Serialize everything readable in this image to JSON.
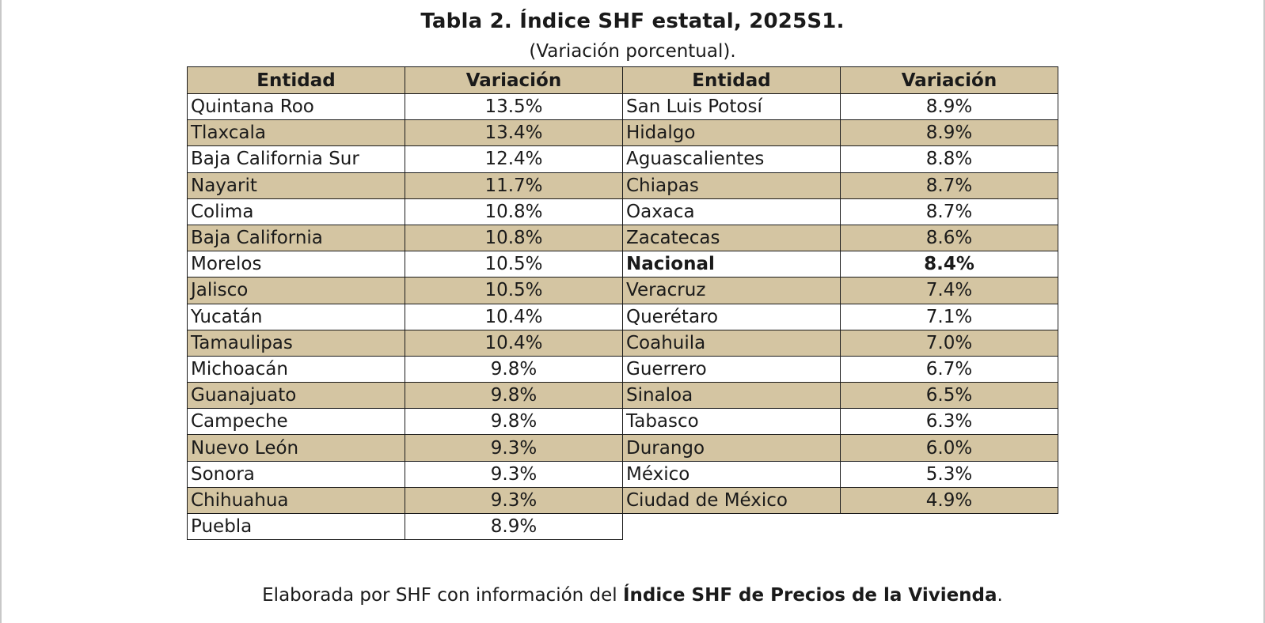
{
  "title": "Tabla 2. Índice SHF estatal, 2025S1.",
  "subtitle": "(Variación porcentual).",
  "headers": [
    "Entidad",
    "Variación",
    "Entidad",
    "Variación"
  ],
  "rows": [
    {
      "e1": "Quintana Roo",
      "v1": "13.5%",
      "e2": "San Luis Potosí",
      "v2": "8.9%"
    },
    {
      "e1": "Tlaxcala",
      "v1": "13.4%",
      "e2": "Hidalgo",
      "v2": "8.9%"
    },
    {
      "e1": "Baja California Sur",
      "v1": "12.4%",
      "e2": "Aguascalientes",
      "v2": "8.8%"
    },
    {
      "e1": "Nayarit",
      "v1": "11.7%",
      "e2": "Chiapas",
      "v2": "8.7%"
    },
    {
      "e1": "Colima",
      "v1": "10.8%",
      "e2": "Oaxaca",
      "v2": "8.7%"
    },
    {
      "e1": "Baja California",
      "v1": "10.8%",
      "e2": "Zacatecas",
      "v2": "8.6%"
    },
    {
      "e1": "Morelos",
      "v1": "10.5%",
      "e2": "Nacional",
      "v2": "8.4%"
    },
    {
      "e1": "Jalisco",
      "v1": "10.5%",
      "e2": "Veracruz",
      "v2": "7.4%"
    },
    {
      "e1": "Yucatán",
      "v1": "10.4%",
      "e2": "Querétaro",
      "v2": "7.1%"
    },
    {
      "e1": "Tamaulipas",
      "v1": "10.4%",
      "e2": "Coahuila",
      "v2": "7.0%"
    },
    {
      "e1": "Michoacán",
      "v1": "9.8%",
      "e2": "Guerrero",
      "v2": "6.7%"
    },
    {
      "e1": "Guanajuato",
      "v1": "9.8%",
      "e2": "Sinaloa",
      "v2": "6.5%"
    },
    {
      "e1": "Campeche",
      "v1": "9.8%",
      "e2": "Tabasco",
      "v2": "6.3%"
    },
    {
      "e1": "Nuevo León",
      "v1": "9.3%",
      "e2": "Durango",
      "v2": "6.0%"
    },
    {
      "e1": "Sonora",
      "v1": "9.3%",
      "e2": "México",
      "v2": "5.3%"
    },
    {
      "e1": "Chihuahua",
      "v1": "9.3%",
      "e2": "Ciudad de México",
      "v2": "4.9%"
    },
    {
      "e1": "Puebla",
      "v1": "8.9%",
      "e2": "",
      "v2": ""
    }
  ],
  "note": {
    "prefix": "Elaborada por SHF con información del ",
    "strong": "Índice SHF de Precios de la Vivienda",
    "suffix": "."
  },
  "colors": {
    "shade": "#d4c5a2",
    "border": "#1a1a1a"
  }
}
